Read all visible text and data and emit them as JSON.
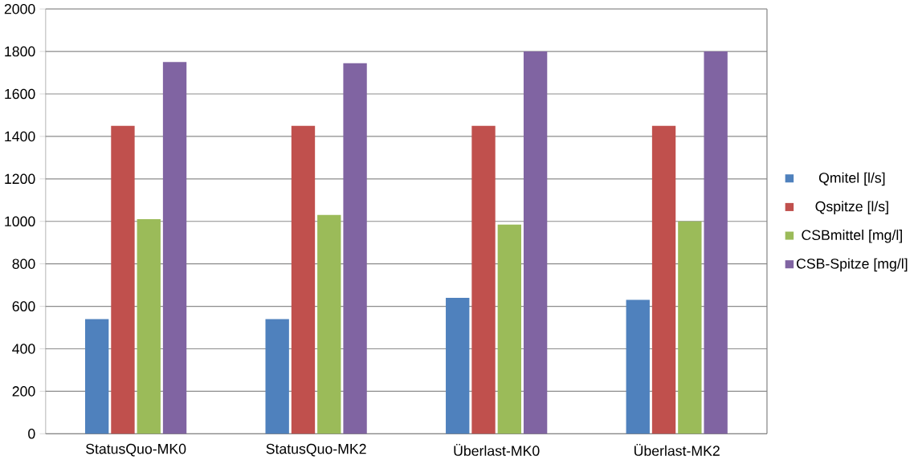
{
  "chart_data": {
    "type": "bar",
    "categories": [
      "StatusQuo-MK0",
      "StatusQuo-MK2",
      "Überlast-MK0",
      "Überlast-MK2"
    ],
    "series": [
      {
        "name": "Qmitel [l/s]",
        "color": "#4f81bd",
        "values": [
          540,
          540,
          640,
          630
        ]
      },
      {
        "name": "Qspitze [l/s]",
        "color": "#c0504d",
        "values": [
          1450,
          1450,
          1450,
          1450
        ]
      },
      {
        "name": "CSBmittel [mg/l]",
        "color": "#9bbb59",
        "values": [
          1010,
          1030,
          985,
          1000
        ]
      },
      {
        "name": "CSB-Spitze [mg/l]",
        "color": "#8064a2",
        "values": [
          1750,
          1745,
          1800,
          1800
        ]
      }
    ],
    "ylim": [
      0,
      2000
    ],
    "yticks": [
      0,
      200,
      400,
      600,
      800,
      1000,
      1200,
      1400,
      1600,
      1800,
      2000
    ],
    "grid": "y",
    "legend": "right"
  }
}
